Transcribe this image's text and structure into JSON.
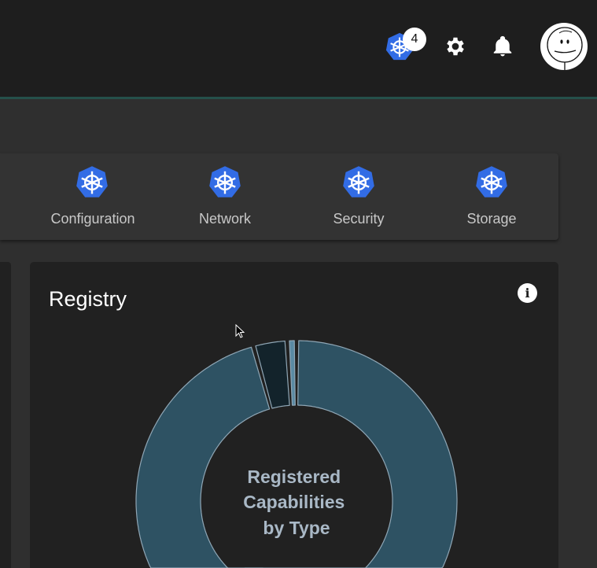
{
  "header": {
    "kubernetes_badge_count": "4",
    "icons": [
      "kubernetes-icon",
      "gear-icon",
      "bell-icon",
      "avatar"
    ]
  },
  "nav": {
    "items": [
      {
        "label": "Configuration",
        "icon": "kubernetes-icon"
      },
      {
        "label": "Network",
        "icon": "kubernetes-icon"
      },
      {
        "label": "Security",
        "icon": "kubernetes-icon"
      },
      {
        "label": "Storage",
        "icon": "kubernetes-icon"
      }
    ]
  },
  "registry": {
    "title": "Registry",
    "info_icon": "info-icon"
  },
  "chart_data": {
    "type": "pie",
    "donut": true,
    "center_label": [
      "Registered",
      "Capabilities",
      "by Type"
    ],
    "values": [
      56,
      40.5,
      3,
      0.5
    ],
    "colors": [
      "#2e5263",
      "#2e5263",
      "#13232b",
      "#5a8aa3"
    ],
    "stroke": "#8fa6b5"
  },
  "colors": {
    "accent": "#326ce5",
    "header_bg": "#1e1e1e",
    "card_bg": "#212121",
    "divider": "#25504a"
  }
}
